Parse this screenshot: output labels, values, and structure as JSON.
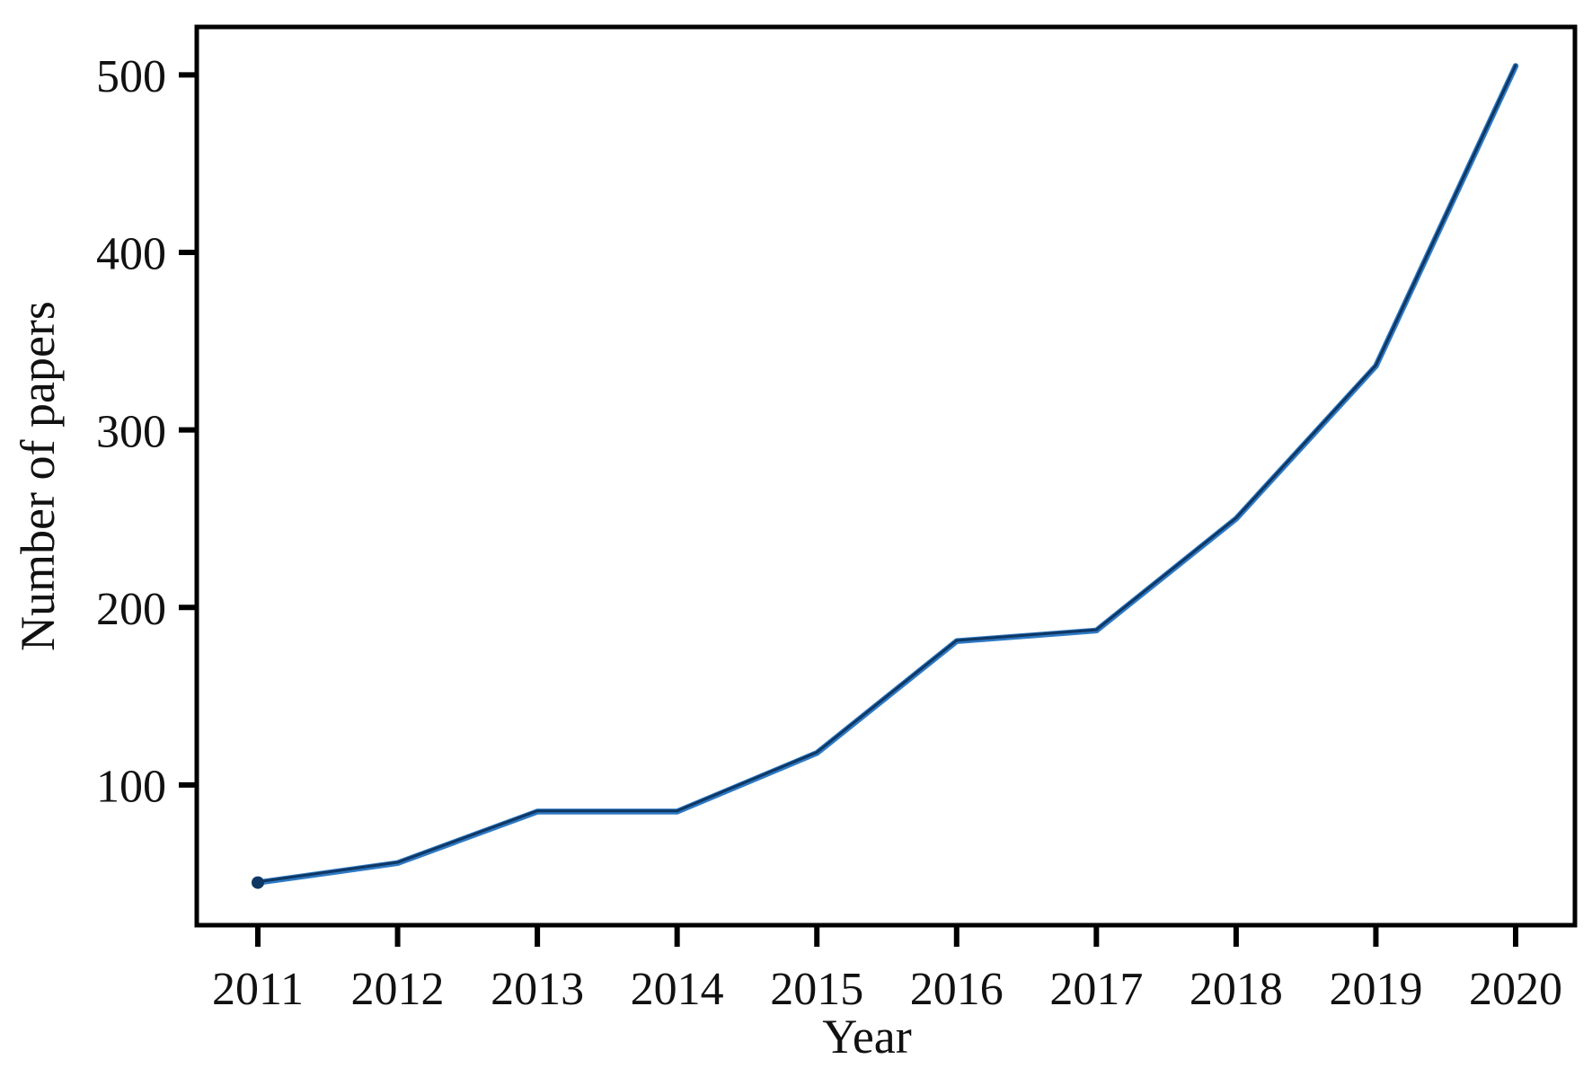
{
  "figure": {
    "background": "#ffffff",
    "border_color": "#000000"
  },
  "chart_data": {
    "type": "line",
    "title": "",
    "xlabel": "Year",
    "ylabel": "Number of papers",
    "x": [
      2011,
      2012,
      2013,
      2014,
      2015,
      2016,
      2017,
      2018,
      2019,
      2020
    ],
    "xtick_labels": [
      "2011",
      "2012",
      "2013",
      "2014",
      "2015",
      "2016",
      "2017",
      "2018",
      "2019",
      "2020"
    ],
    "series": [
      {
        "name": "Number of papers",
        "values": [
          45,
          56,
          85,
          85,
          118,
          181,
          187,
          250,
          336,
          505
        ]
      }
    ],
    "yticks": [
      100,
      200,
      300,
      400,
      500
    ],
    "ytick_labels": [
      "100",
      "200",
      "300",
      "400",
      "500"
    ],
    "ylim": [
      21,
      527
    ],
    "grid": false,
    "legend_position": "none",
    "line_halo_color": "#2e79c4",
    "line_core_color": "#0e3764",
    "axis_color": "#000000"
  }
}
